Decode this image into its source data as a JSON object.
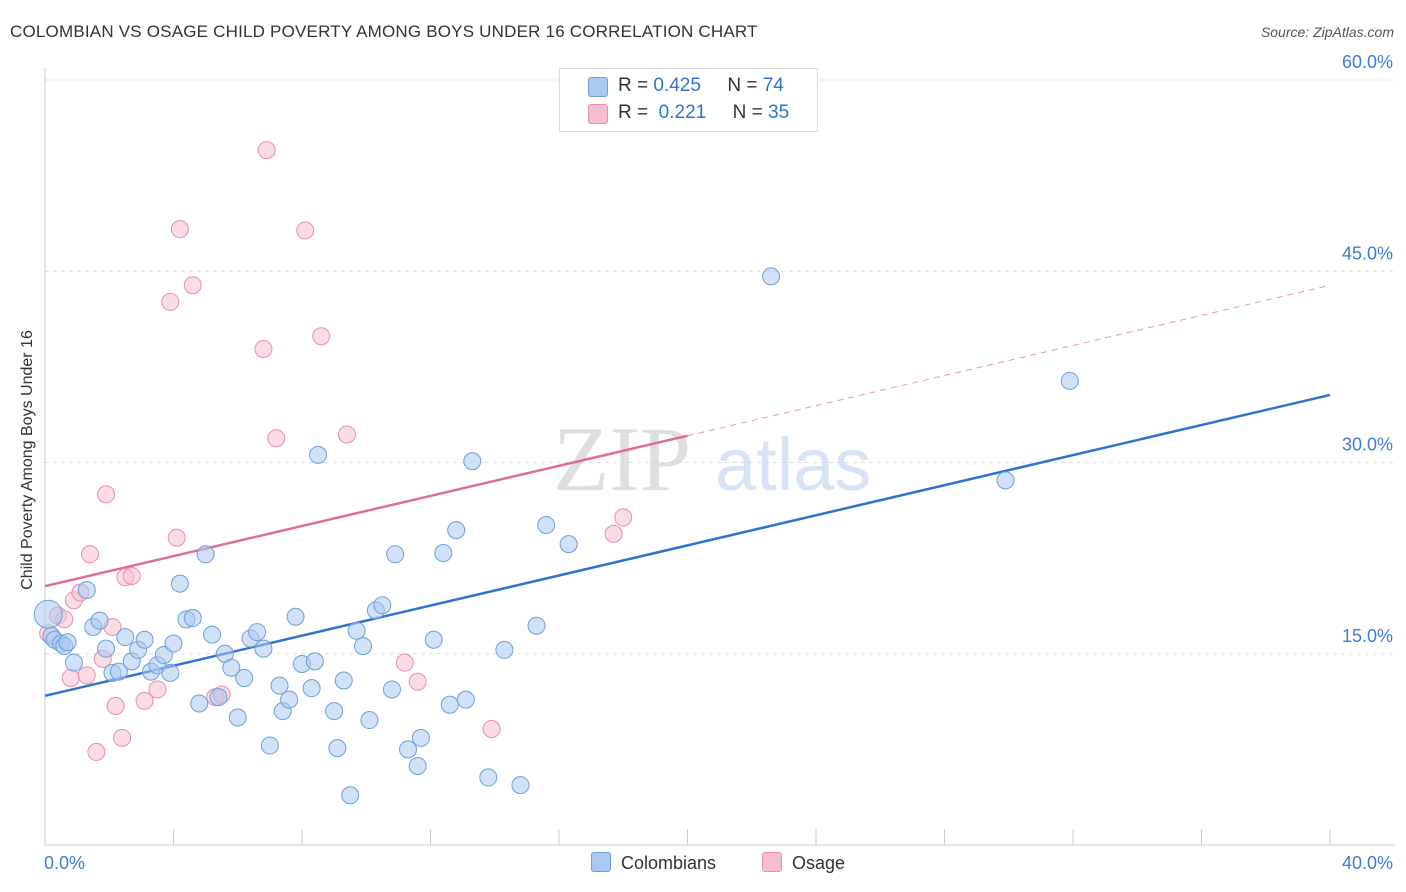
{
  "title": "COLOMBIAN VS OSAGE CHILD POVERTY AMONG BOYS UNDER 16 CORRELATION CHART",
  "source": "Source: ZipAtlas.com",
  "watermark": {
    "zip": "ZIP",
    "atlas": "atlas"
  },
  "legend": {
    "rows": [
      {
        "r_label": "R =",
        "r_value": "0.425",
        "n_label": "N =",
        "n_value": "74"
      },
      {
        "r_label": "R =",
        "r_value": "0.221",
        "n_label": "N =",
        "n_value": "35"
      }
    ]
  },
  "bottom_legend": {
    "colombians": "Colombians",
    "osage": "Osage"
  },
  "colors": {
    "colombians_fill": "#a9c8f2",
    "colombians_stroke": "#6e9fdc",
    "colombians_line": "#2f73d0",
    "osage_fill": "#f6bfd0",
    "osage_stroke": "#e88fab",
    "osage_line": "#e06c93",
    "tick_label": "#3b7dd8",
    "grid": "#dddddd"
  },
  "chart_data": {
    "type": "scatter",
    "title": "COLOMBIAN VS OSAGE CHILD POVERTY AMONG BOYS UNDER 16 CORRELATION CHART",
    "xlabel": "",
    "ylabel": "Child Poverty Among Boys Under 16",
    "xlim": [
      0,
      40
    ],
    "ylim": [
      0,
      60
    ],
    "x_tick_labels": [
      "0.0%",
      "40.0%"
    ],
    "y_ticks": [
      15,
      30,
      45,
      60
    ],
    "y_tick_labels": [
      "15.0%",
      "30.0%",
      "45.0%",
      "60.0%"
    ],
    "grid": "horizontal dashed",
    "legend_position": "top-center",
    "series": [
      {
        "name": "Colombians",
        "r": 0.425,
        "n": 74,
        "trend": {
          "x": [
            0,
            40
          ],
          "y": [
            11.7,
            35.3
          ]
        },
        "points": [
          [
            0.1,
            18.1
          ],
          [
            0.2,
            16.4
          ],
          [
            0.3,
            16.1
          ],
          [
            0.5,
            15.8
          ],
          [
            0.6,
            15.6
          ],
          [
            0.7,
            15.9
          ],
          [
            0.9,
            14.3
          ],
          [
            1.3,
            20.0
          ],
          [
            1.5,
            17.1
          ],
          [
            1.7,
            17.6
          ],
          [
            1.9,
            15.4
          ],
          [
            2.1,
            13.5
          ],
          [
            2.3,
            13.6
          ],
          [
            2.5,
            16.3
          ],
          [
            2.7,
            14.4
          ],
          [
            2.9,
            15.3
          ],
          [
            3.1,
            16.1
          ],
          [
            3.3,
            13.6
          ],
          [
            3.5,
            14.1
          ],
          [
            3.7,
            14.9
          ],
          [
            3.9,
            13.5
          ],
          [
            4.0,
            15.8
          ],
          [
            4.2,
            20.5
          ],
          [
            4.4,
            17.7
          ],
          [
            4.6,
            17.8
          ],
          [
            4.8,
            11.1
          ],
          [
            5.0,
            22.8
          ],
          [
            5.2,
            16.5
          ],
          [
            5.4,
            11.6
          ],
          [
            5.6,
            15.0
          ],
          [
            5.8,
            13.9
          ],
          [
            6.0,
            10.0
          ],
          [
            6.2,
            13.1
          ],
          [
            6.4,
            16.2
          ],
          [
            6.6,
            16.7
          ],
          [
            6.8,
            15.4
          ],
          [
            7.0,
            7.8
          ],
          [
            7.3,
            12.5
          ],
          [
            7.4,
            10.5
          ],
          [
            7.6,
            11.4
          ],
          [
            7.8,
            17.9
          ],
          [
            8.0,
            14.2
          ],
          [
            8.3,
            12.3
          ],
          [
            8.4,
            14.4
          ],
          [
            8.5,
            30.6
          ],
          [
            9.0,
            10.5
          ],
          [
            9.1,
            7.6
          ],
          [
            9.3,
            12.9
          ],
          [
            9.5,
            3.9
          ],
          [
            9.7,
            16.8
          ],
          [
            9.9,
            15.6
          ],
          [
            10.1,
            9.8
          ],
          [
            10.3,
            18.4
          ],
          [
            10.5,
            18.8
          ],
          [
            10.8,
            12.2
          ],
          [
            10.9,
            22.8
          ],
          [
            11.3,
            7.5
          ],
          [
            11.6,
            6.2
          ],
          [
            11.7,
            8.4
          ],
          [
            12.1,
            16.1
          ],
          [
            12.4,
            22.9
          ],
          [
            12.6,
            11.0
          ],
          [
            12.8,
            24.7
          ],
          [
            13.1,
            11.4
          ],
          [
            13.3,
            30.1
          ],
          [
            13.8,
            5.3
          ],
          [
            14.3,
            15.3
          ],
          [
            14.8,
            4.7
          ],
          [
            15.3,
            17.2
          ],
          [
            15.6,
            25.1
          ],
          [
            16.3,
            23.6
          ],
          [
            22.6,
            44.6
          ],
          [
            29.9,
            28.6
          ],
          [
            31.9,
            36.4
          ]
        ]
      },
      {
        "name": "Osage",
        "r": 0.221,
        "n": 35,
        "trend": {
          "x": [
            0,
            20
          ],
          "y": [
            20.3,
            32.1
          ]
        },
        "points": [
          [
            0.1,
            16.6
          ],
          [
            0.4,
            18.0
          ],
          [
            0.6,
            17.7
          ],
          [
            0.8,
            13.1
          ],
          [
            0.9,
            19.2
          ],
          [
            1.1,
            19.8
          ],
          [
            1.3,
            13.3
          ],
          [
            1.4,
            22.8
          ],
          [
            1.6,
            7.3
          ],
          [
            1.8,
            14.6
          ],
          [
            1.9,
            27.5
          ],
          [
            2.1,
            17.1
          ],
          [
            2.2,
            10.9
          ],
          [
            2.4,
            8.4
          ],
          [
            2.5,
            21.0
          ],
          [
            2.7,
            21.1
          ],
          [
            3.1,
            11.3
          ],
          [
            3.5,
            12.2
          ],
          [
            3.9,
            42.6
          ],
          [
            4.1,
            24.1
          ],
          [
            4.2,
            48.3
          ],
          [
            4.6,
            43.9
          ],
          [
            5.3,
            11.6
          ],
          [
            5.5,
            11.8
          ],
          [
            6.8,
            38.9
          ],
          [
            6.9,
            54.5
          ],
          [
            7.2,
            31.9
          ],
          [
            8.1,
            48.2
          ],
          [
            8.6,
            39.9
          ],
          [
            9.4,
            32.2
          ],
          [
            11.2,
            14.3
          ],
          [
            11.6,
            12.8
          ],
          [
            13.9,
            9.1
          ],
          [
            17.7,
            24.4
          ],
          [
            18.0,
            25.7
          ]
        ]
      }
    ]
  }
}
